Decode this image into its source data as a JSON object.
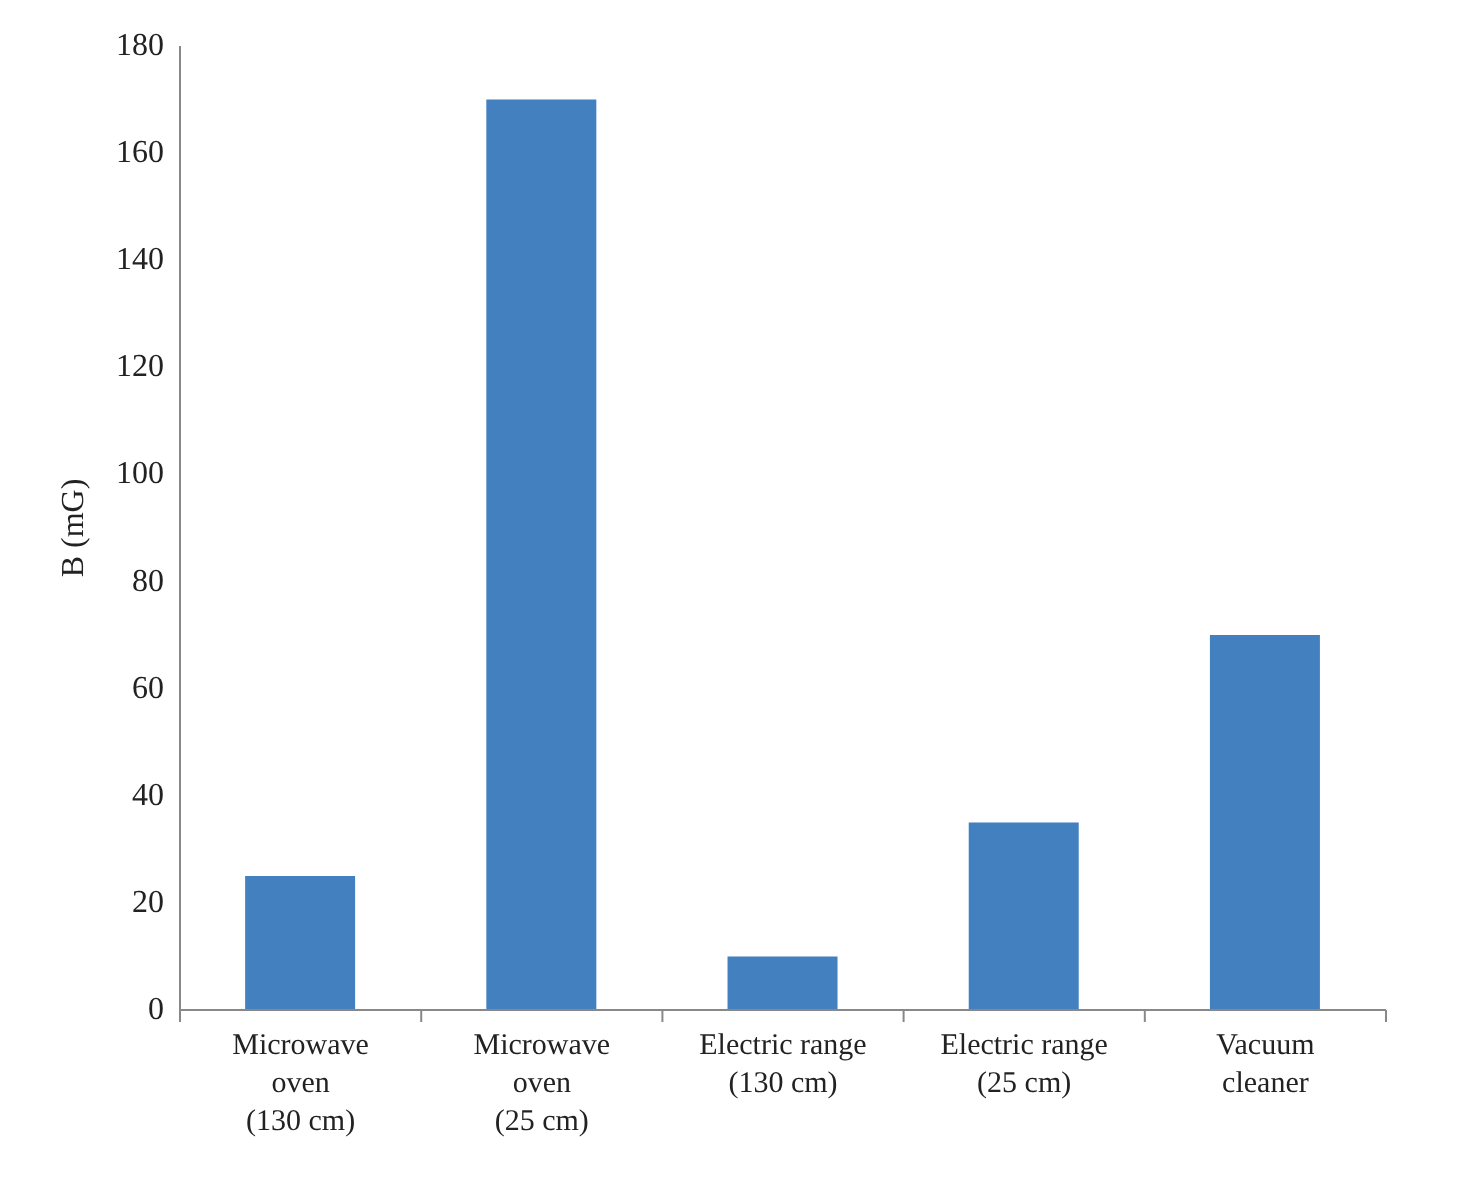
{
  "chart_data": {
    "type": "bar",
    "ylabel": "B (mG)",
    "categories": [
      "Microwave\noven\n(130 cm)",
      "Microwave\noven\n(25 cm)",
      "Electric range\n(130 cm)",
      "Electric range\n(25 cm)",
      "Vacuum\ncleaner"
    ],
    "values": [
      25,
      170,
      10,
      35,
      70
    ],
    "color": "#4380c0",
    "ylim": [
      0,
      180
    ],
    "yticks": [
      0,
      20,
      40,
      60,
      80,
      100,
      120,
      140,
      160,
      180
    ]
  }
}
